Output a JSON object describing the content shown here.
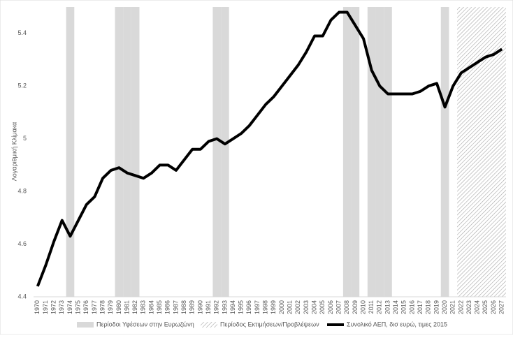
{
  "chart_data": {
    "type": "line",
    "ylabel": "Λογαριθμική Κλίμακα",
    "categories": [
      "1970",
      "1971",
      "1972",
      "1973",
      "1974",
      "1975",
      "1976",
      "1977",
      "1978",
      "1979",
      "1980",
      "1981",
      "1982",
      "1983",
      "1984",
      "1985",
      "1986",
      "1987",
      "1988",
      "1989",
      "1990",
      "1991",
      "1992",
      "1993",
      "1994",
      "1995",
      "1996",
      "1997",
      "1998",
      "1999",
      "2000",
      "2001",
      "2002",
      "2003",
      "2004",
      "2005",
      "2006",
      "2007",
      "2008",
      "2009",
      "2010",
      "2011",
      "2012",
      "2013",
      "2014",
      "2015",
      "2016",
      "2017",
      "2018",
      "2019",
      "2020",
      "2021",
      "2022",
      "2023",
      "2024",
      "2025",
      "2026",
      "2027"
    ],
    "ylim": [
      4.4,
      5.5
    ],
    "yticks": [
      4.4,
      4.6,
      4.8,
      5,
      5.2,
      5.4
    ],
    "grid": false,
    "legend": "bottom",
    "series": [
      {
        "name": "Περίοδοι Υφέσεων στην Ευρωζώνη",
        "type": "column",
        "color": "#d9d9d9",
        "values": [
          null,
          null,
          null,
          null,
          5.5,
          null,
          null,
          null,
          null,
          null,
          5.5,
          5.5,
          5.5,
          null,
          null,
          null,
          null,
          null,
          null,
          null,
          null,
          null,
          5.5,
          5.5,
          null,
          null,
          null,
          null,
          null,
          null,
          null,
          null,
          null,
          null,
          null,
          null,
          null,
          null,
          5.5,
          5.5,
          null,
          5.5,
          5.5,
          5.5,
          null,
          null,
          null,
          null,
          null,
          null,
          5.5,
          null,
          null,
          null,
          null,
          null,
          null,
          null
        ]
      },
      {
        "name": "Περίοδος Εκτιμήσεων/Προβλέψεων",
        "type": "column",
        "color": "#a6a6a6",
        "hatch": true,
        "values": [
          null,
          null,
          null,
          null,
          null,
          null,
          null,
          null,
          null,
          null,
          null,
          null,
          null,
          null,
          null,
          null,
          null,
          null,
          null,
          null,
          null,
          null,
          null,
          null,
          null,
          null,
          null,
          null,
          null,
          null,
          null,
          null,
          null,
          null,
          null,
          null,
          null,
          null,
          null,
          null,
          null,
          null,
          null,
          null,
          null,
          null,
          null,
          null,
          null,
          null,
          null,
          null,
          5.5,
          5.5,
          5.5,
          5.5,
          5.5,
          5.5
        ]
      },
      {
        "name": "Συνολικό ΑΕΠ, δισ ευρώ, τιμες 2015",
        "type": "line",
        "color": "#000000",
        "values": [
          4.44,
          4.52,
          4.61,
          4.69,
          4.63,
          4.69,
          4.75,
          4.78,
          4.85,
          4.88,
          4.89,
          4.87,
          4.86,
          4.85,
          4.87,
          4.9,
          4.9,
          4.88,
          4.92,
          4.96,
          4.96,
          4.99,
          5.0,
          4.98,
          5.0,
          5.02,
          5.05,
          5.09,
          5.13,
          5.16,
          5.2,
          5.24,
          5.28,
          5.33,
          5.39,
          5.39,
          5.45,
          5.48,
          5.48,
          5.43,
          5.38,
          5.26,
          5.2,
          5.17,
          5.17,
          5.17,
          5.17,
          5.18,
          5.2,
          5.21,
          5.12,
          5.2,
          5.25,
          5.27,
          5.29,
          5.31,
          5.32,
          5.34
        ]
      }
    ]
  }
}
